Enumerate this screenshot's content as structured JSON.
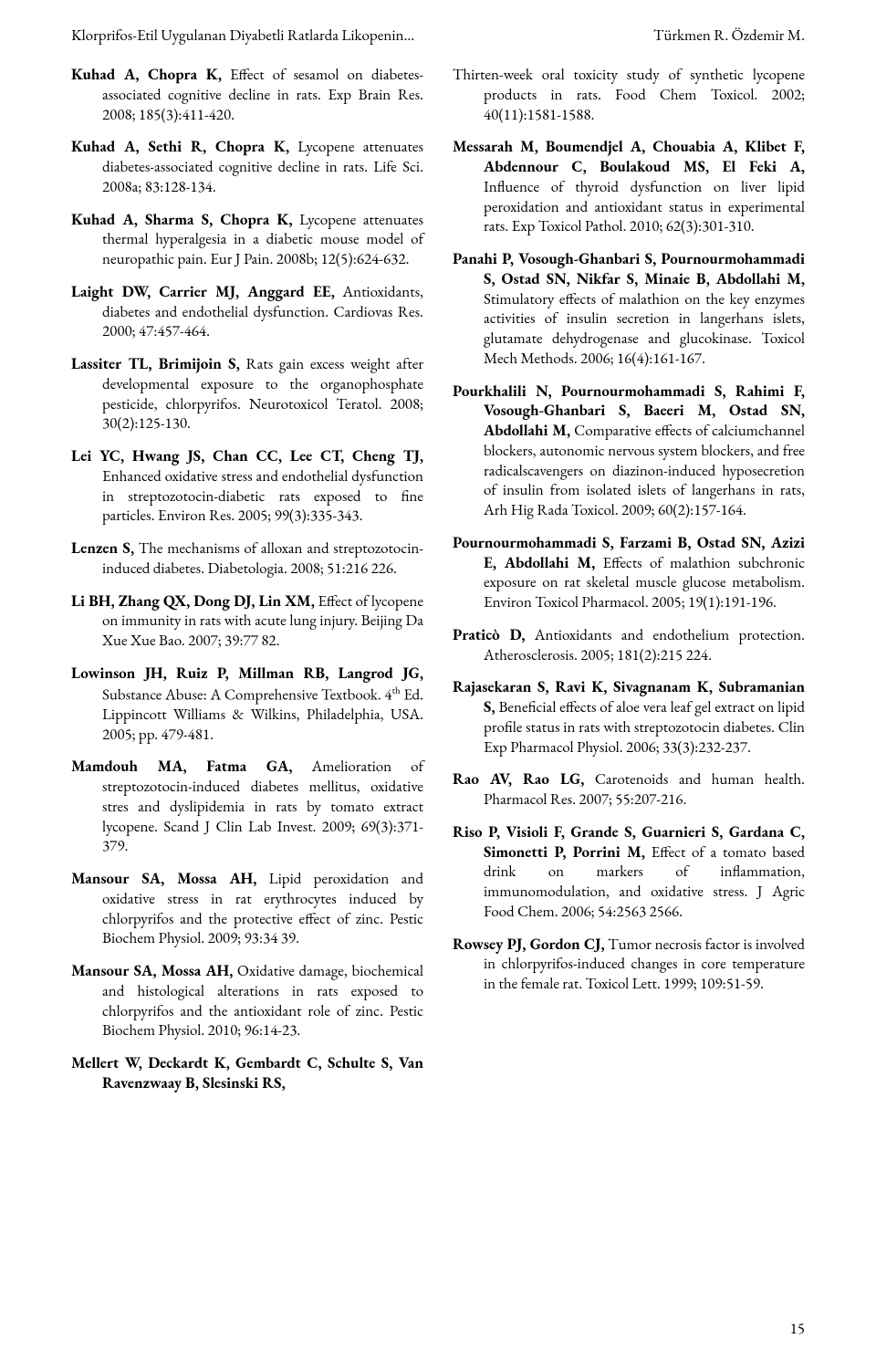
{
  "header": {
    "left": "Klorprifos-Etil Uygulanan Diyabetli Ratlarda Likopenin…",
    "right": "Türkmen R. Özdemir M."
  },
  "page_number": "15",
  "left_col": [
    {
      "bold": "Kuhad A, Chopra K,",
      "rest": " Effect of sesamol on diabetes-associated cognitive decline in rats. Exp Brain Res. 2008; 185(3):411-420."
    },
    {
      "bold": "Kuhad A, Sethi R, Chopra K,",
      "rest": " Lycopene attenuates diabetes-associated cognitive decline in rats. Life Sci. 2008a; 83:128-134."
    },
    {
      "bold": "Kuhad A, Sharma S, Chopra K,",
      "rest": " Lycopene attenuates thermal hyperalgesia in a diabetic mouse model of neuropathic pain. Eur J Pain. 2008b; 12(5):624-632."
    },
    {
      "bold": "Laight DW, Carrier MJ, Anggard EE,",
      "rest": " Antioxidants, diabetes and endothelial dysfunction. Cardiovas Res. 2000; 47:457-464."
    },
    {
      "bold": "Lassiter TL, Brimijoin S,",
      "rest": " Rats gain excess weight after developmental exposure to the organophosphate pesticide, chlorpyrifos. Neurotoxicol Teratol. 2008; 30(2):125-130."
    },
    {
      "bold": "Lei YC, Hwang JS, Chan CC, Lee CT, Cheng TJ,",
      "rest": " Enhanced oxidative stress and endothelial dysfunction in streptozotocin-diabetic rats exposed to fine particles. Environ Res. 2005; 99(3):335-343."
    },
    {
      "bold": "Lenzen S,",
      "rest": " The mechanisms of alloxan and streptozotocin-induced diabetes. Diabetologia. 2008; 51:216 226."
    },
    {
      "bold": "Li BH, Zhang QX, Dong DJ, Lin XM,",
      "rest": " Effect of lycopene on immunity in rats with acute lung injury. Beijing Da Xue Xue Bao. 2007; 39:77 82."
    },
    {
      "bold": "Lowinson JH, Ruiz P, Millman RB, Langrod JG,",
      "rest": " Substance Abuse: A Comprehensive Textbook. 4",
      "sup": "th",
      "rest2": " Ed. Lippincott Williams & Wilkins, Philadelphia, USA. 2005; pp. 479-481."
    },
    {
      "bold": "Mamdouh MA, Fatma GA,",
      "rest": " Amelioration of streptozotocin-induced diabetes mellitus, oxidative stres and dyslipidemia in rats by tomato extract lycopene. Scand J Clin Lab Invest. 2009; 69(3):371-379."
    },
    {
      "bold": "Mansour SA, Mossa AH,",
      "rest": " Lipid peroxidation and oxidative stress in rat erythrocytes induced by chlorpyrifos and the protective effect of zinc. Pestic Biochem Physiol. 2009; 93:34 39."
    },
    {
      "bold": "Mansour SA, Mossa AH,",
      "rest": " Oxidative damage, biochemical and histological alterations in rats exposed to chlorpyrifos and the antioxidant role of zinc. Pestic Biochem Physiol. 2010; 96:14-23."
    },
    {
      "bold": "Mellert W, Deckardt K, Gembardt C, Schulte S, Van Ravenzwaay B, Slesinski RS,",
      "rest": ""
    }
  ],
  "right_col": [
    {
      "bold": "",
      "rest": "Thirten-week oral toxicity study of synthetic lycopene products in rats. Food Chem Toxicol. 2002; 40(11):1581-1588."
    },
    {
      "bold": "Messarah M, Boumendjel A, Chouabia A, Klibet F, Abdennour C, Boulakoud MS, El Feki A,",
      "rest": " Influence of thyroid dysfunction on liver lipid peroxidation and antioxidant status in experimental rats. Exp Toxicol Pathol. 2010; 62(3):301-310."
    },
    {
      "bold": "Panahi P, Vosough-Ghanbari S, Pournourmohammadi S, Ostad SN, Nikfar S, Minaie B, Abdollahi M,",
      "rest": " Stimulatory effects of malathion on the key enzymes activities of insulin secretion in langerhans islets, glutamate dehydrogenase and glucokinase. Toxicol Mech Methods. 2006; 16(4):161-167."
    },
    {
      "bold": "Pourkhalili N, Pournourmohammadi S, Rahimi F, Vosough-Ghanbari S, Baeeri M, Ostad SN, Abdollahi M,",
      "rest": " Comparative effects of calciumchannel blockers, autonomic nervous system blockers, and free radicalscavengers on diazinon-induced hyposecretion of insulin from isolated islets of langerhans in rats, Arh Hig Rada Toxicol. 2009; 60(2):157-164."
    },
    {
      "bold": "Pournourmohammadi S, Farzami B, Ostad SN, Azizi E, Abdollahi M,",
      "rest": " Effects of malathion subchronic exposure on rat skeletal muscle glucose metabolism. Environ Toxicol Pharmacol. 2005; 19(1):191-196."
    },
    {
      "bold": "Praticò D,",
      "rest": " Antioxidants and endothelium protection. Atherosclerosis. 2005; 181(2):215 224."
    },
    {
      "bold": "Rajasekaran S, Ravi K, Sivagnanam K, Subramanian S,",
      "rest": " Beneficial effects of aloe vera leaf gel extract on lipid profile status in rats with streptozotocin diabetes. Clin Exp Pharmacol Physiol. 2006; 33(3):232-237."
    },
    {
      "bold": "Rao AV, Rao LG,",
      "rest": " Carotenoids and human health. Pharmacol Res. 2007; 55:207-216."
    },
    {
      "bold": "Riso P, Visioli F, Grande S, Guarnieri S, Gardana C, Simonetti P, Porrini M,",
      "rest": " Effect of a tomato based drink on markers of inflammation, immunomodulation, and oxidative stress. J Agric Food Chem. 2006; 54:2563 2566."
    },
    {
      "bold": "Rowsey PJ, Gordon CJ,",
      "rest": " Tumor necrosis factor is involved in chlorpyrifos-induced changes in core temperature in the female rat. Toxicol Lett. 1999; 109:51-59."
    }
  ]
}
